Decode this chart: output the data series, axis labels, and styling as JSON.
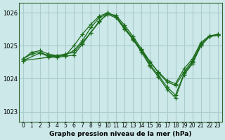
{
  "title": "Graphe pression niveau de la mer (hPa)",
  "bg_color": "#cce8e8",
  "grid_color": "#aacccc",
  "line_color": "#1a6b1a",
  "xlim": [
    -0.5,
    23.5
  ],
  "ylim": [
    1022.7,
    1026.3
  ],
  "yticks": [
    1023,
    1024,
    1025,
    1026
  ],
  "xticks": [
    0,
    1,
    2,
    3,
    4,
    5,
    6,
    7,
    8,
    9,
    10,
    11,
    12,
    13,
    14,
    15,
    16,
    17,
    18,
    19,
    20,
    21,
    22,
    23
  ],
  "series": [
    {
      "x": [
        0,
        1,
        2,
        3,
        4,
        5,
        6,
        7,
        8,
        9,
        10,
        11,
        12,
        13,
        14,
        15,
        16,
        17,
        18,
        19,
        20,
        21,
        22,
        23
      ],
      "y": [
        1024.6,
        1024.8,
        1024.85,
        1024.75,
        1024.7,
        1024.75,
        1024.8,
        1025.1,
        1025.4,
        1025.75,
        1025.95,
        1025.85,
        1025.5,
        1025.2,
        1024.85,
        1024.5,
        1024.2,
        1023.95,
        1023.85,
        1024.3,
        1024.6,
        1025.1,
        1025.3,
        1025.35
      ]
    },
    {
      "x": [
        0,
        1,
        2,
        3,
        4,
        5,
        6,
        7,
        8,
        9,
        10,
        11,
        12,
        13,
        14,
        15,
        16,
        17,
        18,
        19,
        20,
        21,
        22,
        23
      ],
      "y": [
        1024.6,
        1024.75,
        1024.8,
        1024.7,
        1024.7,
        1024.72,
        1024.85,
        1025.15,
        1025.55,
        1025.85,
        1025.98,
        1025.92,
        1025.62,
        1025.28,
        1024.9,
        1024.52,
        1024.18,
        1023.9,
        1023.8,
        1024.2,
        1024.55,
        1025.05,
        1025.28,
        1025.35
      ]
    },
    {
      "x": [
        0,
        2,
        3,
        4,
        5,
        6,
        7,
        8,
        9,
        10,
        11,
        12,
        13,
        14,
        15,
        16,
        17,
        18,
        19,
        20,
        21,
        22,
        23
      ],
      "y": [
        1024.55,
        1024.78,
        1024.68,
        1024.68,
        1024.7,
        1025.0,
        1025.35,
        1025.65,
        1025.9,
        1026.0,
        1025.88,
        1025.55,
        1025.22,
        1024.85,
        1024.42,
        1024.1,
        1023.75,
        1023.5,
        1024.15,
        1024.5,
        1025.0,
        1025.28,
        1025.32
      ]
    },
    {
      "x": [
        0,
        3,
        4,
        5,
        6,
        7,
        8,
        9,
        10,
        11,
        12,
        13,
        14,
        15,
        16,
        17,
        18,
        19,
        20,
        21,
        22,
        23
      ],
      "y": [
        1024.55,
        1024.65,
        1024.65,
        1024.68,
        1024.72,
        1025.05,
        1025.4,
        1025.72,
        1026.0,
        1025.88,
        1025.52,
        1025.18,
        1024.8,
        1024.38,
        1024.05,
        1023.68,
        1023.42,
        1024.12,
        1024.45,
        1025.0,
        1025.28,
        1025.32
      ]
    }
  ]
}
